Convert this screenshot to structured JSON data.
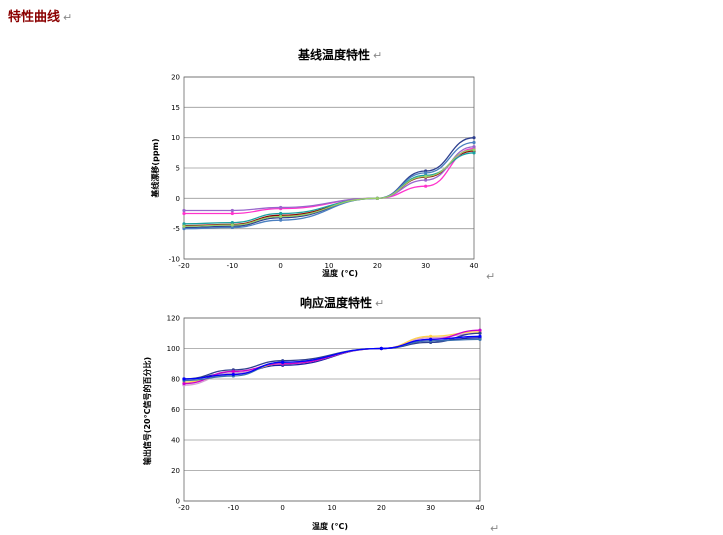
{
  "page": {
    "heading": "特性曲线",
    "return_mark": "↵"
  },
  "chart_data": [
    {
      "type": "line",
      "title": "基线温度特性",
      "xlabel": "温度 (°C)",
      "ylabel": "基线漂移(ppm)",
      "xlim": [
        -20,
        40
      ],
      "ylim": [
        -10,
        20
      ],
      "x_ticks": [
        -20,
        -10,
        0,
        10,
        20,
        30,
        40
      ],
      "y_ticks": [
        -10,
        -5,
        0,
        5,
        10,
        15,
        20
      ],
      "grid": true,
      "x": [
        -20,
        -10,
        0,
        20,
        30,
        40
      ],
      "series": [
        {
          "color": "#2e3f8f",
          "values": [
            -4.8,
            -4.6,
            -3.2,
            0,
            4.5,
            10.0
          ]
        },
        {
          "color": "#8b0000",
          "values": [
            -4.5,
            -4.3,
            -2.8,
            0,
            3.5,
            7.8
          ]
        },
        {
          "color": "#ff33cc",
          "values": [
            -2.5,
            -2.5,
            -1.7,
            0,
            2.0,
            8.2
          ]
        },
        {
          "color": "#1aa0a0",
          "values": [
            -4.2,
            -4.0,
            -2.5,
            0,
            3.8,
            7.5
          ]
        },
        {
          "color": "#9966cc",
          "values": [
            -2.0,
            -2.0,
            -1.5,
            0,
            3.0,
            8.5
          ]
        },
        {
          "color": "#4a7fc0",
          "values": [
            -5.0,
            -4.8,
            -3.6,
            0,
            4.2,
            9.2
          ]
        },
        {
          "color": "#99cc66",
          "values": [
            -4.6,
            -4.4,
            -3.0,
            0,
            3.6,
            8.0
          ]
        }
      ]
    },
    {
      "type": "line",
      "title": "响应温度特性",
      "xlabel": "温度 (°C)",
      "ylabel": "输出信号(20°C信号的百分比)",
      "xlim": [
        -20,
        40
      ],
      "ylim": [
        0,
        120
      ],
      "x_ticks": [
        -20,
        -10,
        0,
        10,
        20,
        30,
        40
      ],
      "y_ticks": [
        0,
        20,
        40,
        60,
        80,
        100,
        120
      ],
      "grid": true,
      "x": [
        -20,
        -10,
        0,
        20,
        30,
        40
      ],
      "series": [
        {
          "color": "#1a1aa8",
          "values": [
            80,
            84,
            89,
            100,
            105,
            107
          ]
        },
        {
          "color": "#d4a0d4",
          "values": [
            76,
            84,
            90,
            100,
            107,
            110
          ]
        },
        {
          "color": "#ffd24d",
          "values": [
            78,
            83,
            90,
            100,
            108,
            111
          ]
        },
        {
          "color": "#2e3f8f",
          "values": [
            80,
            86,
            92,
            100,
            104,
            110
          ]
        },
        {
          "color": "#cc00cc",
          "values": [
            77,
            85,
            90,
            100,
            106,
            112
          ]
        },
        {
          "color": "#3a70b0",
          "values": [
            79,
            82,
            91,
            100,
            105,
            106
          ]
        },
        {
          "color": "#0000ff",
          "values": [
            80,
            83,
            91,
            100,
            106,
            108
          ]
        }
      ]
    }
  ]
}
